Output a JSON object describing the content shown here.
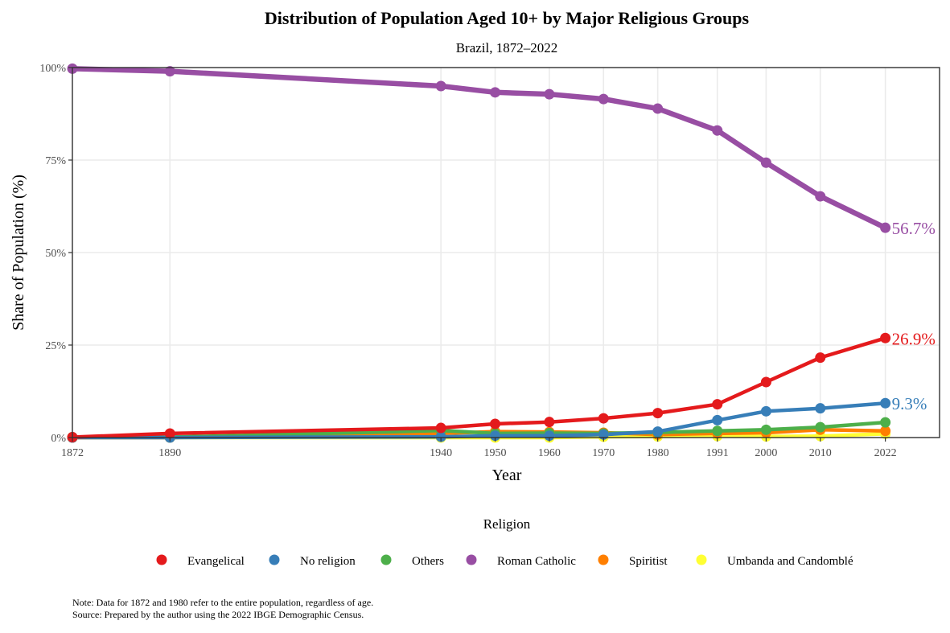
{
  "chart_data": {
    "type": "line",
    "title": "Distribution of Population Aged 10+ by Major Religious Groups",
    "subtitle": "Brazil, 1872–2022",
    "xlabel": "Year",
    "ylabel": "Share of Population (%)",
    "x": [
      1872,
      1890,
      1940,
      1950,
      1960,
      1970,
      1980,
      1991,
      2000,
      2010,
      2022
    ],
    "x_ticks": [
      "1872",
      "1890",
      "1940",
      "1950",
      "1960",
      "1970",
      "1980",
      "1991",
      "2000",
      "2010",
      "2022"
    ],
    "xlim": [
      1872,
      2032
    ],
    "ylim": [
      0,
      100
    ],
    "y_ticks": [
      0,
      25,
      50,
      75,
      100
    ],
    "y_tick_labels": [
      "0%",
      "25%",
      "50%",
      "75%",
      "100%"
    ],
    "grid": true,
    "legend_title": "Religion",
    "legend_position": "bottom",
    "series": [
      {
        "name": "Evangelical",
        "color": "#E41A1C",
        "values": [
          0.1,
          1.1,
          2.6,
          3.7,
          4.2,
          5.2,
          6.6,
          9.0,
          15.0,
          21.6,
          26.9
        ],
        "end_label": "26.9%"
      },
      {
        "name": "No religion",
        "color": "#377EB8",
        "values": [
          0.0,
          0.0,
          0.2,
          0.5,
          0.5,
          0.8,
          1.6,
          4.7,
          7.1,
          7.9,
          9.3
        ],
        "end_label": "9.3%"
      },
      {
        "name": "Others",
        "color": "#4DAF4A",
        "values": [
          0.1,
          0.1,
          1.9,
          1.1,
          1.2,
          1.1,
          1.4,
          1.8,
          2.1,
          2.8,
          4.1
        ],
        "end_label": ""
      },
      {
        "name": "Roman Catholic",
        "color": "#984EA3",
        "values": [
          99.7,
          99.0,
          95.0,
          93.3,
          92.8,
          91.5,
          88.9,
          83.0,
          74.3,
          65.2,
          56.7
        ],
        "end_label": "56.7%"
      },
      {
        "name": "Spiritist",
        "color": "#FF7F00",
        "values": [
          0.0,
          0.0,
          1.1,
          1.6,
          1.5,
          1.3,
          0.8,
          1.1,
          1.3,
          2.1,
          1.8
        ],
        "end_label": ""
      },
      {
        "name": "Umbanda and Candomblé",
        "color": "#FFFF33",
        "values": [
          0.0,
          0.0,
          0.0,
          0.0,
          0.0,
          0.2,
          0.3,
          0.4,
          0.3,
          0.4,
          1.0
        ],
        "end_label": ""
      }
    ],
    "notes": [
      "Note: Data for 1872 and 1980 refer to the entire population, regardless of age.",
      "Source: Prepared by the author using the 2022 IBGE Demographic Census."
    ]
  }
}
